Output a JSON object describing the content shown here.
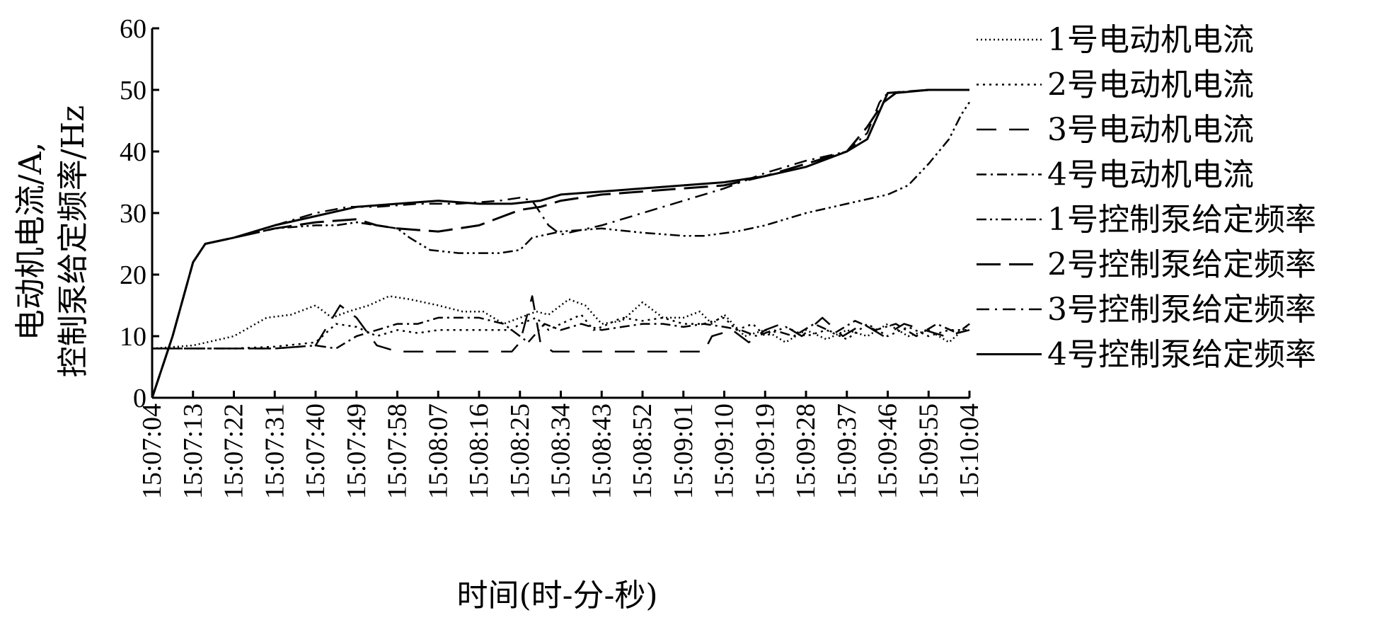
{
  "chart_data": {
    "type": "line",
    "xlabel": "时间(时-分-秒)",
    "ylabel_line1": "电动机电流/A,",
    "ylabel_line2": "控制泵给定频率/Hz",
    "ylim": [
      0,
      60
    ],
    "yticks": [
      "0",
      "10",
      "20",
      "30",
      "40",
      "50",
      "60"
    ],
    "x_categories": [
      "15:07:04",
      "15:07:13",
      "15:07:22",
      "15:07:31",
      "15:07:40",
      "15:07:49",
      "15:07:58",
      "15:08:07",
      "15:08:16",
      "15:08:25",
      "15:08:34",
      "15:08:43",
      "15:08:52",
      "15:09:01",
      "15:09:10",
      "15:09:19",
      "15:09:28",
      "15:09:37",
      "15:09:46",
      "15:09:55",
      "15:10:04"
    ],
    "legend_position": "right",
    "grid": false,
    "series": [
      {
        "name": "1号电动机电流",
        "dash": "2 4",
        "width": 2.5,
        "points": [
          [
            0,
            8
          ],
          [
            1,
            8.5
          ],
          [
            2,
            10
          ],
          [
            2.8,
            13
          ],
          [
            3.4,
            13.5
          ],
          [
            4,
            15
          ],
          [
            4.4,
            13
          ],
          [
            4.8,
            14
          ],
          [
            5.3,
            15
          ],
          [
            5.8,
            16.5
          ],
          [
            6.3,
            16
          ],
          [
            7,
            15
          ],
          [
            7.6,
            14
          ],
          [
            8.1,
            14
          ],
          [
            8.6,
            12
          ],
          [
            9,
            13
          ],
          [
            9.4,
            14
          ],
          [
            9.7,
            13.5
          ],
          [
            10,
            15
          ],
          [
            10.2,
            16
          ],
          [
            10.6,
            15
          ],
          [
            11,
            12
          ],
          [
            11.5,
            12.5
          ],
          [
            12,
            15.5
          ],
          [
            12.5,
            13
          ],
          [
            13,
            13
          ],
          [
            13.4,
            14
          ],
          [
            13.7,
            12
          ],
          [
            14,
            13.5
          ],
          [
            14.5,
            10
          ],
          [
            15,
            11
          ],
          [
            15.5,
            9
          ],
          [
            16,
            11
          ],
          [
            16.5,
            9.5
          ],
          [
            17,
            11
          ],
          [
            17.5,
            10
          ],
          [
            18,
            12
          ],
          [
            18.5,
            10
          ],
          [
            19,
            11
          ],
          [
            19.5,
            9
          ],
          [
            20,
            12
          ]
        ]
      },
      {
        "name": "2号电动机电流",
        "dash": "3 6",
        "width": 2.5,
        "points": [
          [
            0,
            8
          ],
          [
            1,
            8
          ],
          [
            2,
            8
          ],
          [
            3,
            8.3
          ],
          [
            4,
            9
          ],
          [
            4.5,
            12
          ],
          [
            5,
            11.5
          ],
          [
            5.5,
            10
          ],
          [
            6,
            11
          ],
          [
            6.5,
            10.5
          ],
          [
            7,
            11
          ],
          [
            8,
            11
          ],
          [
            8.8,
            11
          ],
          [
            9,
            12
          ],
          [
            9.4,
            13
          ],
          [
            9.7,
            11
          ],
          [
            10,
            12
          ],
          [
            10.5,
            13.5
          ],
          [
            10.8,
            11
          ],
          [
            11,
            11.5
          ],
          [
            11.5,
            13
          ],
          [
            12,
            12.5
          ],
          [
            12.5,
            13
          ],
          [
            13,
            12
          ],
          [
            13.5,
            12
          ],
          [
            14,
            13
          ],
          [
            14.3,
            11
          ],
          [
            14.7,
            12
          ],
          [
            15,
            10
          ],
          [
            15.5,
            11.5
          ],
          [
            16,
            10
          ],
          [
            16.5,
            11
          ],
          [
            17,
            9.5
          ],
          [
            17.5,
            12
          ],
          [
            18,
            10
          ],
          [
            18.5,
            11.5
          ],
          [
            19,
            10
          ],
          [
            19.5,
            11
          ],
          [
            20,
            11
          ]
        ]
      },
      {
        "name": "3号电动机电流",
        "dash": "28 18",
        "width": 2.5,
        "points": [
          [
            0,
            8
          ],
          [
            1,
            8
          ],
          [
            2,
            8
          ],
          [
            3,
            8
          ],
          [
            4,
            8.5
          ],
          [
            4.6,
            15
          ],
          [
            5,
            13
          ],
          [
            5.5,
            8.5
          ],
          [
            6,
            7.5
          ],
          [
            7,
            7.5
          ],
          [
            8,
            7.5
          ],
          [
            8.8,
            7.5
          ],
          [
            9,
            9
          ],
          [
            9.3,
            16.5
          ],
          [
            9.5,
            9
          ],
          [
            9.8,
            7.5
          ],
          [
            10,
            7.5
          ],
          [
            11,
            7.5
          ],
          [
            12,
            7.5
          ],
          [
            13,
            7.5
          ],
          [
            13.5,
            7.5
          ],
          [
            13.7,
            10
          ],
          [
            14.2,
            11
          ],
          [
            14.6,
            9
          ],
          [
            15,
            11
          ],
          [
            15.4,
            12
          ],
          [
            15.9,
            10
          ],
          [
            16.4,
            13
          ],
          [
            16.9,
            10
          ],
          [
            17.4,
            12
          ],
          [
            17.9,
            10
          ],
          [
            18.4,
            12
          ],
          [
            18.9,
            11
          ],
          [
            19.4,
            10
          ],
          [
            20,
            11
          ]
        ]
      },
      {
        "name": "4号电动机电流",
        "dash": "14 6 3 6",
        "width": 2.5,
        "points": [
          [
            0,
            8
          ],
          [
            1,
            8
          ],
          [
            2,
            8
          ],
          [
            3,
            8
          ],
          [
            4,
            8.5
          ],
          [
            4.5,
            8
          ],
          [
            5,
            10
          ],
          [
            5.5,
            11
          ],
          [
            6,
            12
          ],
          [
            6.5,
            12
          ],
          [
            7,
            13
          ],
          [
            7.5,
            13
          ],
          [
            8,
            13
          ],
          [
            8.6,
            12
          ],
          [
            9,
            10
          ],
          [
            9.2,
            9
          ],
          [
            9.6,
            12
          ],
          [
            10,
            11
          ],
          [
            10.5,
            12
          ],
          [
            11,
            11
          ],
          [
            11.5,
            11.5
          ],
          [
            12,
            12
          ],
          [
            12.5,
            12
          ],
          [
            13,
            11.5
          ],
          [
            13.5,
            12
          ],
          [
            14,
            11.5
          ],
          [
            14.4,
            11
          ],
          [
            14.8,
            10
          ],
          [
            15.2,
            11
          ],
          [
            15.7,
            10
          ],
          [
            16.2,
            12
          ],
          [
            16.7,
            10.5
          ],
          [
            17.2,
            12.5
          ],
          [
            17.7,
            11
          ],
          [
            18.2,
            12
          ],
          [
            18.7,
            10
          ],
          [
            19.2,
            12
          ],
          [
            19.7,
            10.5
          ],
          [
            20,
            12
          ]
        ]
      },
      {
        "name": "1号控制泵给定频率",
        "dash": "14 5 3 5 3 5",
        "width": 2.5,
        "points": [
          [
            0,
            0
          ],
          [
            0.5,
            10
          ],
          [
            1,
            22
          ],
          [
            1.3,
            25
          ],
          [
            2,
            26
          ],
          [
            3,
            27.5
          ],
          [
            4,
            28
          ],
          [
            4.5,
            28
          ],
          [
            5,
            28.5
          ],
          [
            5.5,
            28
          ],
          [
            6,
            27.5
          ],
          [
            6.3,
            26
          ],
          [
            6.8,
            24
          ],
          [
            7.5,
            23.5
          ],
          [
            8.5,
            23.5
          ],
          [
            9,
            24
          ],
          [
            9.3,
            26
          ],
          [
            10,
            27
          ],
          [
            11,
            27.5
          ],
          [
            12,
            26.8
          ],
          [
            13,
            26.3
          ],
          [
            13.5,
            26.3
          ],
          [
            14.3,
            27
          ],
          [
            15,
            28
          ],
          [
            16,
            30
          ],
          [
            17,
            31.5
          ],
          [
            18,
            33
          ],
          [
            18.5,
            34.5
          ],
          [
            19,
            38
          ],
          [
            19.5,
            42
          ],
          [
            19.8,
            46
          ],
          [
            20,
            48
          ]
        ]
      },
      {
        "name": "2号控制泵给定频率",
        "dash": "34 12",
        "width": 3,
        "points": [
          [
            0,
            0
          ],
          [
            0.5,
            10
          ],
          [
            1,
            22
          ],
          [
            1.3,
            25
          ],
          [
            2,
            26
          ],
          [
            3,
            27.5
          ],
          [
            4,
            28.5
          ],
          [
            5,
            29
          ],
          [
            5.5,
            28
          ],
          [
            6,
            27.5
          ],
          [
            7,
            27
          ],
          [
            8,
            28
          ],
          [
            9,
            30.5
          ],
          [
            9.5,
            31
          ],
          [
            10,
            32
          ],
          [
            11,
            33
          ],
          [
            12,
            33.5
          ],
          [
            13,
            34
          ],
          [
            14,
            34.5
          ],
          [
            15,
            36
          ],
          [
            16,
            38
          ],
          [
            17,
            40
          ],
          [
            17.5,
            44
          ],
          [
            17.9,
            48
          ],
          [
            18,
            49.5
          ],
          [
            19,
            50
          ],
          [
            20,
            50
          ]
        ]
      },
      {
        "name": "3号控制泵给定频率",
        "dash": "18 8 3 8",
        "width": 2.5,
        "points": [
          [
            0,
            0
          ],
          [
            0.5,
            10
          ],
          [
            1,
            22
          ],
          [
            1.3,
            25
          ],
          [
            2,
            26
          ],
          [
            3,
            28
          ],
          [
            4,
            30
          ],
          [
            4.8,
            31
          ],
          [
            5.5,
            31
          ],
          [
            6.5,
            31.5
          ],
          [
            7.5,
            31.5
          ],
          [
            8.5,
            32
          ],
          [
            9,
            32.5
          ],
          [
            9.3,
            32
          ],
          [
            9.7,
            28
          ],
          [
            10,
            26.5
          ],
          [
            11,
            28
          ],
          [
            12,
            30
          ],
          [
            13,
            32
          ],
          [
            14,
            34
          ],
          [
            15,
            36.5
          ],
          [
            16,
            38.5
          ],
          [
            17,
            40
          ],
          [
            17.5,
            43
          ],
          [
            17.8,
            48
          ],
          [
            18,
            49.5
          ],
          [
            19,
            50
          ],
          [
            20,
            50
          ]
        ]
      },
      {
        "name": "4号控制泵给定频率",
        "dash": "none",
        "width": 3,
        "points": [
          [
            0,
            0
          ],
          [
            0.5,
            10
          ],
          [
            1,
            22
          ],
          [
            1.3,
            25
          ],
          [
            2,
            26
          ],
          [
            3,
            28
          ],
          [
            4,
            29.5
          ],
          [
            5,
            31
          ],
          [
            6,
            31.5
          ],
          [
            7,
            32
          ],
          [
            8,
            31.5
          ],
          [
            8.8,
            31.5
          ],
          [
            9.5,
            32
          ],
          [
            10,
            33
          ],
          [
            11,
            33.5
          ],
          [
            12,
            34
          ],
          [
            13,
            34.5
          ],
          [
            14,
            35
          ],
          [
            15,
            36
          ],
          [
            16,
            37.5
          ],
          [
            17,
            40
          ],
          [
            17.5,
            42
          ],
          [
            17.9,
            48
          ],
          [
            18.2,
            49.5
          ],
          [
            19,
            50
          ],
          [
            20,
            50
          ]
        ]
      }
    ]
  }
}
